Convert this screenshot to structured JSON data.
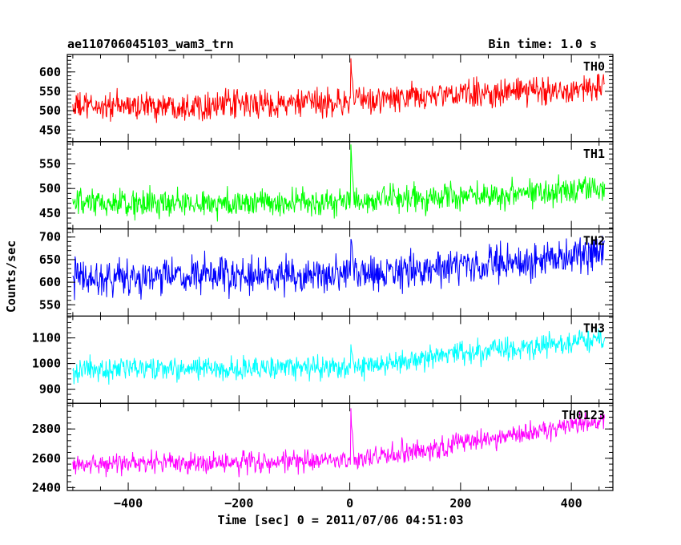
{
  "header": {
    "title": "ae110706045103_wam3_trn",
    "bin_time": "Bin time: 1.0 s"
  },
  "chart_data": {
    "type": "line",
    "title": "ae110706045103_wam3_trn",
    "xlabel": "Time [sec] 0 = 2011/07/06 04:51:03",
    "ylabel": "Counts/sec",
    "xlim": [
      -510,
      475
    ],
    "x_range": [
      -500,
      460
    ],
    "x_step": 1,
    "x_ticks": [
      -400,
      -200,
      0,
      200,
      400
    ],
    "x_tick_labels": [
      "−400",
      "−200",
      "0",
      "200",
      "400"
    ],
    "grid": false,
    "series": [
      {
        "name": "TH0",
        "color": "#ff0000",
        "ylim": [
          420,
          645
        ],
        "yticks": [
          450,
          500,
          550,
          600
        ],
        "trend_points": [
          [
            -500,
            510
          ],
          [
            -100,
            518
          ],
          [
            0,
            522
          ],
          [
            150,
            538
          ],
          [
            460,
            560
          ]
        ],
        "noise_amplitude": 38,
        "burst": {
          "x": 2,
          "peak": 640
        }
      },
      {
        "name": "TH1",
        "color": "#00ff00",
        "ylim": [
          418,
          595
        ],
        "yticks": [
          450,
          500,
          550
        ],
        "trend_points": [
          [
            -500,
            468
          ],
          [
            0,
            472
          ],
          [
            460,
            502
          ]
        ],
        "noise_amplitude": 30,
        "burst": {
          "x": 2,
          "peak": 590
        }
      },
      {
        "name": "TH2",
        "color": "#0000ff",
        "ylim": [
          525,
          718
        ],
        "yticks": [
          550,
          600,
          650,
          700
        ],
        "trend_points": [
          [
            -500,
            610
          ],
          [
            0,
            615
          ],
          [
            460,
            660
          ]
        ],
        "noise_amplitude": 42,
        "burst": {
          "x": 2,
          "peak": 715
        }
      },
      {
        "name": "TH3",
        "color": "#00ffff",
        "ylim": [
          845,
          1185
        ],
        "yticks": [
          900,
          1000,
          1100
        ],
        "trend_points": [
          [
            -500,
            975
          ],
          [
            0,
            985
          ],
          [
            460,
            1100
          ]
        ],
        "noise_amplitude": 48,
        "burst": {
          "x": 2,
          "peak": 1080
        }
      },
      {
        "name": "TH0123",
        "color": "#ff00ff",
        "ylim": [
          2380,
          2975
        ],
        "yticks": [
          2400,
          2600,
          2800
        ],
        "trend_points": [
          [
            -500,
            2560
          ],
          [
            0,
            2580
          ],
          [
            460,
            2860
          ]
        ],
        "noise_amplitude": 80,
        "burst": {
          "x": 2,
          "peak": 2960
        }
      }
    ]
  }
}
